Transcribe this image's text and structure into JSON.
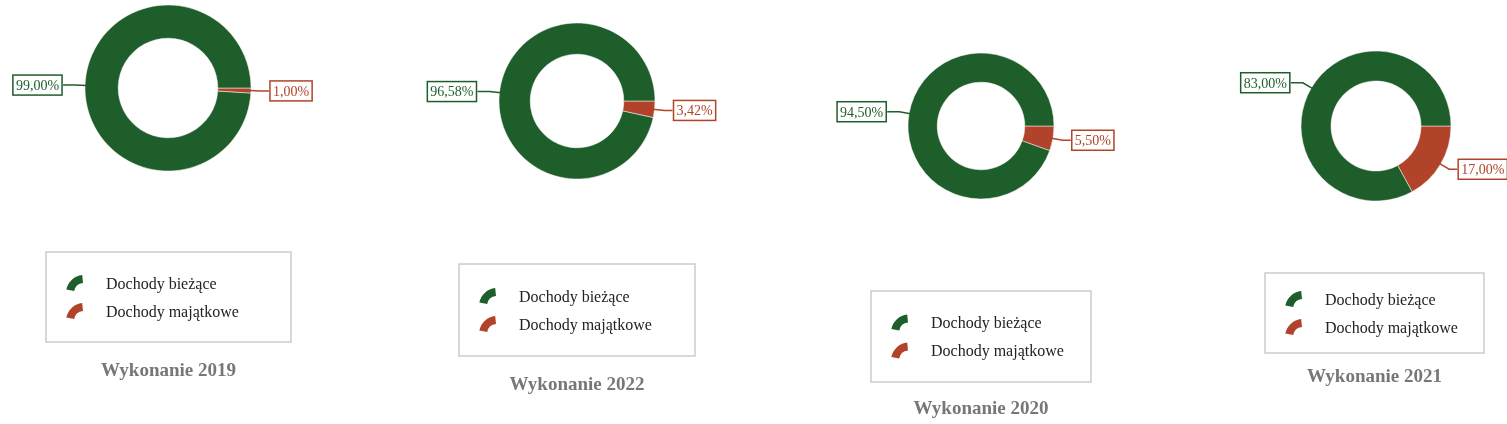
{
  "chart_data": [
    {
      "type": "donut",
      "title": "Wykonanie 2019",
      "categories": [
        "Dochody bieżące",
        "Dochody majątkowe"
      ],
      "values": [
        99,
        1
      ],
      "colors": [
        "#1e5e2a",
        "#b0432a"
      ],
      "value_labels": [
        "99,00%",
        "1,00%"
      ],
      "legend": "bottom"
    },
    {
      "type": "donut",
      "title": "Wykonanie 2022",
      "categories": [
        "Dochody bieżące",
        "Dochody majątkowe"
      ],
      "values": [
        96.58,
        3.42
      ],
      "colors": [
        "#1e5e2a",
        "#b0432a"
      ],
      "value_labels": [
        "96,58%",
        "3,42%"
      ],
      "legend": "bottom"
    },
    {
      "type": "donut",
      "title": "Wykonanie 2020",
      "categories": [
        "Dochody bieżące",
        "Dochody majątkowe"
      ],
      "values": [
        94.5,
        5.5
      ],
      "colors": [
        "#1e5e2a",
        "#b0432a"
      ],
      "value_labels": [
        "94,50%",
        "5,50%"
      ],
      "legend": "bottom"
    },
    {
      "type": "donut",
      "title": "Wykonanie 2021",
      "categories": [
        "Dochody bieżące",
        "Dochody majątkowe"
      ],
      "values": [
        83,
        17
      ],
      "colors": [
        "#1e5e2a",
        "#b0432a"
      ],
      "value_labels": [
        "83,00%",
        "17,00%"
      ],
      "legend": "bottom"
    }
  ]
}
